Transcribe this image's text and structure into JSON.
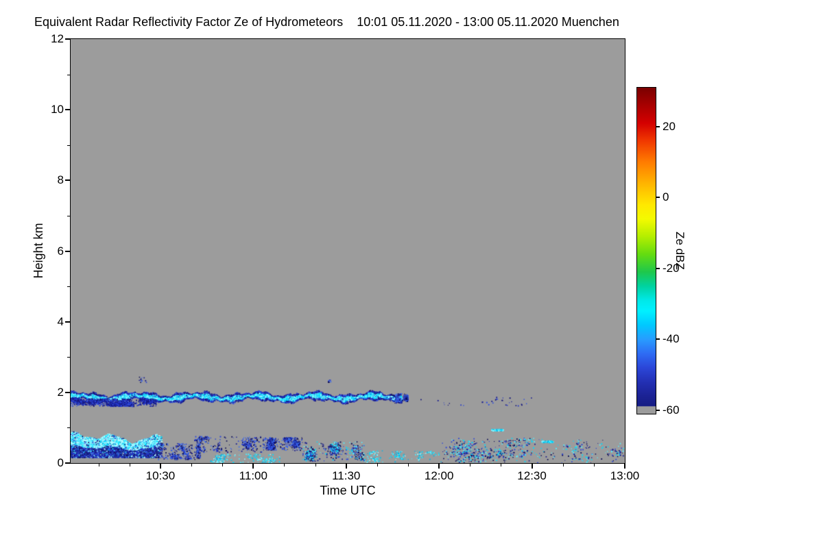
{
  "figure": {
    "kind": "radar-reflectivity-time-height-quicklook",
    "colors": {
      "plot_background": "#9c9c9c",
      "axis": "#000000",
      "page_background": "#ffffff"
    }
  },
  "chart_data": {
    "type": "heatmap",
    "title": "Equivalent Radar Reflectivity Factor Ze of Hydrometeors",
    "range_label": "10:01 05.11.2020 - 13:00 05.11.2020 Muenchen",
    "station": "Muenchen",
    "date": "05.11.2020",
    "time_start": "10:01",
    "time_end": "13:00",
    "xlabel": "Time UTC",
    "ylabel": "Height km",
    "x_total_min": 179,
    "x_ticks": [
      {
        "label": "10:30",
        "min": 29
      },
      {
        "label": "11:00",
        "min": 59
      },
      {
        "label": "11:30",
        "min": 89
      },
      {
        "label": "12:00",
        "min": 119
      },
      {
        "label": "12:30",
        "min": 149
      },
      {
        "label": "13:00",
        "min": 179
      }
    ],
    "x_minor_ticks_min": [
      9,
      19,
      39,
      49,
      69,
      79,
      99,
      109,
      129,
      139,
      159,
      169
    ],
    "y_range": [
      0,
      12
    ],
    "y_ticks": [
      0,
      2,
      4,
      6,
      8,
      10,
      12
    ],
    "y_minor_ticks": [
      1,
      3,
      5,
      7,
      9,
      11
    ],
    "grid": false,
    "plot_bg": "#9c9c9c",
    "colorbar": {
      "label": "Ze dBZ",
      "vmin": -61,
      "vmax": 31,
      "ticks": [
        {
          "label": "20",
          "v": 20
        },
        {
          "label": "0",
          "v": 0
        },
        {
          "label": "-20",
          "v": -20
        },
        {
          "label": "-40",
          "v": -40
        },
        {
          "label": "-60",
          "v": -60
        }
      ],
      "gradient_stops": [
        {
          "v": 31,
          "c": "#7a0000"
        },
        {
          "v": 26,
          "c": "#a80000"
        },
        {
          "v": 21,
          "c": "#d40000"
        },
        {
          "v": 16,
          "c": "#f03800"
        },
        {
          "v": 10,
          "c": "#ff7c00"
        },
        {
          "v": 4,
          "c": "#ffb400"
        },
        {
          "v": -2,
          "c": "#ffe800"
        },
        {
          "v": -6,
          "c": "#f4fa00"
        },
        {
          "v": -11,
          "c": "#b4ee00"
        },
        {
          "v": -16,
          "c": "#64dc10"
        },
        {
          "v": -21,
          "c": "#1ec84c"
        },
        {
          "v": -25,
          "c": "#00d2a0"
        },
        {
          "v": -29,
          "c": "#00e8e8"
        },
        {
          "v": -32,
          "c": "#00f0ff"
        },
        {
          "v": -36,
          "c": "#00c8ff"
        },
        {
          "v": -40,
          "c": "#289cff"
        },
        {
          "v": -44,
          "c": "#2e6cf4"
        },
        {
          "v": -48,
          "c": "#2b46d8"
        },
        {
          "v": -52,
          "c": "#2330b4"
        },
        {
          "v": -56,
          "c": "#1b2294"
        },
        {
          "v": -58.8,
          "c": "#161d84"
        },
        {
          "v": -59,
          "c": "#9c9c9c"
        },
        {
          "v": -61,
          "c": "#9c9c9c"
        }
      ]
    },
    "palettes": {
      "cyanCore": [
        "#7df4ff",
        "#2beaff",
        "#00dcff",
        "#00c3f2",
        "#9ffaff"
      ],
      "cyanBright": [
        "#c9ffff",
        "#8df6ff",
        "#45ecff",
        "#00dcff",
        "#b0fbff"
      ],
      "blueEdge": [
        "#2336c8",
        "#1a1d90",
        "#2e4de0",
        "#151577"
      ],
      "blueDeep": [
        "#1a1d90",
        "#2336c8",
        "#10125f",
        "#3050dd"
      ],
      "blueMix": [
        "#1a1d90",
        "#2b46d8",
        "#3c6cf0",
        "#0a0a55"
      ],
      "cyanMix": [
        "#00dcff",
        "#4cecff",
        "#00b4e8",
        "#9cf8ff"
      ],
      "mixedCB": [
        "#00dcff",
        "#2b46d8",
        "#1a1d90",
        "#55eeff",
        "#0a0a55"
      ]
    },
    "features": [
      {
        "id": "elevated-cloud-layer",
        "profile": "band",
        "t0": 0,
        "t1": 107,
        "h_center": 1.86,
        "h_amp": 0.05,
        "h_half": 0.11,
        "count": 15000,
        "core": "cyanCore",
        "edge": "blueEdge",
        "dbz_core": -32,
        "dbz_edge": -50
      },
      {
        "id": "elevated-layer-end-blob",
        "profile": "specks",
        "t0": 103,
        "t1": 109,
        "h0": 1.74,
        "h1": 1.96,
        "count": 320,
        "palette": "blueMix",
        "clusters": 2
      },
      {
        "id": "elevated-layer-underside",
        "profile": "specks",
        "t0": 0,
        "t1": 28,
        "h0": 1.6,
        "h1": 1.82,
        "count": 1500,
        "palette": "blueEdge",
        "clusters": 10
      },
      {
        "id": "low-stratus-layer",
        "profile": "stratus",
        "t0": 0,
        "t1": 30,
        "h0": 0.15,
        "h_top_base": 0.72,
        "h_top_amp": 0.18,
        "count": 10000,
        "core": "cyanBright",
        "edge": "blueDeep",
        "dbz_top": -30,
        "dbz_base": -50
      },
      {
        "id": "stratus-breakup-specks",
        "profile": "specks",
        "t0": 28,
        "t1": 42,
        "h0": 0.1,
        "h1": 0.55,
        "count": 500,
        "palette": "blueMix",
        "clusters": 8
      },
      {
        "id": "late-morning-low-specks",
        "profile": "specks",
        "t0": 40,
        "t1": 62,
        "h0": 0.3,
        "h1": 0.75,
        "count": 420,
        "palette": "blueMix",
        "clusters": 7
      },
      {
        "id": "surface-specks-cyan",
        "profile": "specks",
        "t0": 45,
        "t1": 70,
        "h0": 0.0,
        "h1": 0.25,
        "count": 220,
        "palette": "cyanMix",
        "clusters": 6
      },
      {
        "id": "patch-1105",
        "profile": "specks",
        "t0": 62,
        "t1": 75,
        "h0": 0.35,
        "h1": 0.72,
        "count": 850,
        "palette": "blueMix",
        "clusters": 4
      },
      {
        "id": "specks-1120",
        "profile": "specks",
        "t0": 75,
        "t1": 95,
        "h0": 0.05,
        "h1": 0.6,
        "count": 600,
        "palette": "mixedCB",
        "clusters": 9
      },
      {
        "id": "sparse-bottom-1145",
        "profile": "specks",
        "t0": 95,
        "t1": 120,
        "h0": 0.0,
        "h1": 0.35,
        "count": 200,
        "palette": "cyanMix",
        "clusters": 6
      },
      {
        "id": "afternoon-scattered-specks",
        "profile": "specks",
        "t0": 120,
        "t1": 179,
        "h0": 0.0,
        "h1": 0.7,
        "count": 750,
        "palette": "mixedCB",
        "clusters": 14
      },
      {
        "id": "cyan-dash-1218",
        "profile": "dash",
        "t0": 136,
        "t1": 140,
        "h0": 0.93,
        "count": 90,
        "palette": "cyanMix"
      },
      {
        "id": "cyan-dash-1234",
        "profile": "dash",
        "t0": 152,
        "t1": 156,
        "h0": 0.6,
        "count": 90,
        "palette": "cyanMix"
      },
      {
        "id": "isolated-high-dots-1025",
        "profile": "specks",
        "t0": 22,
        "t1": 27,
        "h0": 2.28,
        "h1": 2.45,
        "count": 16,
        "palette": "blueMix",
        "clusters": 2
      },
      {
        "id": "isolated-high-dot-1125",
        "profile": "specks",
        "t0": 83,
        "t1": 85,
        "h0": 2.25,
        "h1": 2.35,
        "count": 10,
        "palette": "blueMix",
        "clusters": 1
      },
      {
        "id": "faint-midlevel-specks",
        "profile": "specks",
        "t0": 110,
        "t1": 150,
        "h0": 1.6,
        "h1": 1.9,
        "count": 40,
        "palette": "blueEdge",
        "clusters": 10
      }
    ]
  }
}
